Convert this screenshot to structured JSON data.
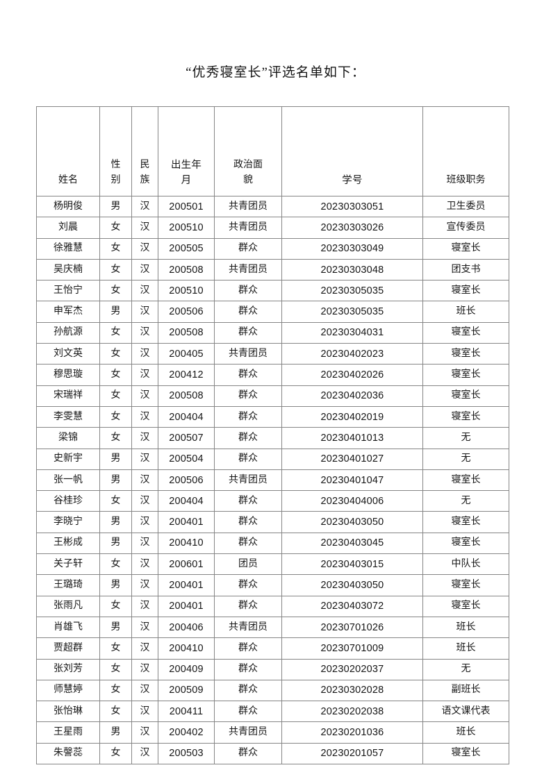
{
  "page": {
    "title": "“优秀寝室长”评选名单如下："
  },
  "table": {
    "columns": [
      {
        "key": "name",
        "label": "姓名",
        "type": "text"
      },
      {
        "key": "gender",
        "label": "性\n别",
        "type": "text"
      },
      {
        "key": "ethnicity",
        "label": "民\n族",
        "type": "text"
      },
      {
        "key": "birth",
        "label": "出生年\n月",
        "type": "number"
      },
      {
        "key": "political",
        "label": "政治面\n貌",
        "type": "text"
      },
      {
        "key": "student-id",
        "label": "学号",
        "type": "number"
      },
      {
        "key": "position",
        "label": "班级职务",
        "type": "text"
      }
    ],
    "rows": [
      [
        "杨明俊",
        "男",
        "汉",
        "200501",
        "共青团员",
        "20230303051",
        "卫生委员"
      ],
      [
        "刘晨",
        "女",
        "汉",
        "200510",
        "共青团员",
        "20230303026",
        "宣传委员"
      ],
      [
        "徐雅慧",
        "女",
        "汉",
        "200505",
        "群众",
        "20230303049",
        "寝室长"
      ],
      [
        "吴庆楠",
        "女",
        "汉",
        "200508",
        "共青团员",
        "20230303048",
        "团支书"
      ],
      [
        "王怡宁",
        "女",
        "汉",
        "200510",
        "群众",
        "20230305035",
        "寝室长"
      ],
      [
        "申军杰",
        "男",
        "汉",
        "200506",
        "群众",
        "20230305035",
        "班长"
      ],
      [
        "孙航源",
        "女",
        "汉",
        "200508",
        "群众",
        "20230304031",
        "寝室长"
      ],
      [
        "刘文英",
        "女",
        "汉",
        "200405",
        "共青团员",
        "20230402023",
        "寝室长"
      ],
      [
        "穆思璇",
        "女",
        "汉",
        "200412",
        "群众",
        "20230402026",
        "寝室长"
      ],
      [
        "宋瑞祥",
        "女",
        "汉",
        "200508",
        "群众",
        "20230402036",
        "寝室长"
      ],
      [
        "李雯慧",
        "女",
        "汉",
        "200404",
        "群众",
        "20230402019",
        "寝室长"
      ],
      [
        "梁锦",
        "女",
        "汉",
        "200507",
        "群众",
        "20230401013",
        "无"
      ],
      [
        "史新宇",
        "男",
        "汉",
        "200504",
        "群众",
        "20230401027",
        "无"
      ],
      [
        "张一帆",
        "男",
        "汉",
        "200506",
        "共青团员",
        "20230401047",
        "寝室长"
      ],
      [
        "谷桂珍",
        "女",
        "汉",
        "200404",
        "群众",
        "20230404006",
        "无"
      ],
      [
        "李晓宁",
        "男",
        "汉",
        "200401",
        "群众",
        "20230403050",
        "寝室长"
      ],
      [
        "王彬成",
        "男",
        "汉",
        "200410",
        "群众",
        "20230403045",
        "寝室长"
      ],
      [
        "关子轩",
        "女",
        "汉",
        "200601",
        "团员",
        "20230403015",
        "中队长"
      ],
      [
        "王璐琦",
        "男",
        "汉",
        "200401",
        "群众",
        "20230403050",
        "寝室长"
      ],
      [
        "张雨凡",
        "女",
        "汉",
        "200401",
        "群众",
        "20230403072",
        "寝室长"
      ],
      [
        "肖雄飞",
        "男",
        "汉",
        "200406",
        "共青团员",
        "20230701026",
        "班长"
      ],
      [
        "贾超群",
        "女",
        "汉",
        "200410",
        "群众",
        "20230701009",
        "班长"
      ],
      [
        "张刘芳",
        "女",
        "汉",
        "200409",
        "群众",
        "20230202037",
        "无"
      ],
      [
        "师慧婷",
        "女",
        "汉",
        "200509",
        "群众",
        "20230302028",
        "副班长"
      ],
      [
        "张怡琳",
        "女",
        "汉",
        "200411",
        "群众",
        "20230202038",
        "语文课代表"
      ],
      [
        "王星雨",
        "男",
        "汉",
        "200402",
        "共青团员",
        "20230201036",
        "班长"
      ],
      [
        "朱謦蕊",
        "女",
        "汉",
        "200503",
        "群众",
        "20230201057",
        "寝室长"
      ]
    ]
  }
}
